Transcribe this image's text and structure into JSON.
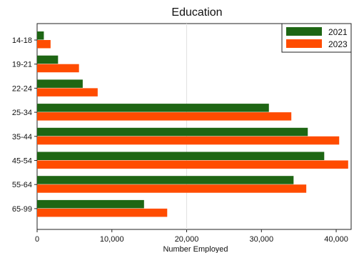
{
  "chart_data": {
    "type": "bar",
    "orientation": "horizontal",
    "title": "Education",
    "xlabel": "Number Employed",
    "ylabel": "",
    "categories": [
      "14-18",
      "19-21",
      "22-24",
      "25-34",
      "35-44",
      "45-54",
      "55-64",
      "65-99"
    ],
    "series": [
      {
        "name": "2021",
        "color": "#1e6614",
        "values": [
          900,
          2800,
          6100,
          31000,
          36200,
          38400,
          34300,
          14300
        ]
      },
      {
        "name": "2023",
        "color": "#ff4c00",
        "values": [
          1800,
          5600,
          8100,
          34000,
          40400,
          41600,
          36000,
          17400
        ]
      }
    ],
    "xlim": [
      0,
      42000
    ],
    "xticks": [
      0,
      10000,
      20000,
      30000,
      40000
    ],
    "xtick_labels": [
      "0",
      "10,000",
      "20,000",
      "30,000",
      "40,000"
    ],
    "grid": {
      "vertical_at": [
        20000
      ]
    },
    "legend": {
      "position": "top-right"
    }
  }
}
